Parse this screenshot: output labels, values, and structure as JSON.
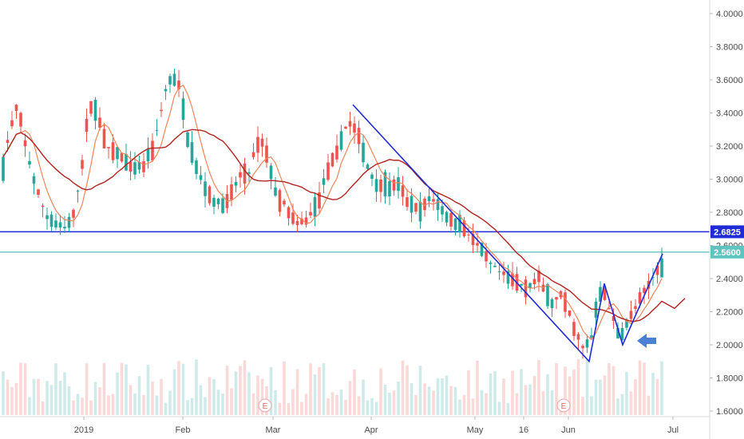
{
  "chart_data": {
    "type": "candlestick",
    "y_ticks": [
      "4.0000",
      "3.8000",
      "3.6000",
      "3.4000",
      "3.2000",
      "3.0000",
      "2.8000",
      "2.6000",
      "2.4000",
      "2.2000",
      "2.0000",
      "1.8000",
      "1.6000"
    ],
    "x_ticks": [
      "2019",
      "Feb",
      "Mar",
      "Apr",
      "May",
      "16",
      "Jun",
      "Jul"
    ],
    "ylim": [
      1.55,
      4.05
    ],
    "price_tags": [
      {
        "value": 2.6825,
        "label": "2.6825",
        "color": "#1e2bd6"
      },
      {
        "value": 2.56,
        "label": "2.5600",
        "color": "#5fc4c0"
      }
    ],
    "horizontal_lines": [
      {
        "value": 2.6825,
        "color": "#1e2bd6"
      },
      {
        "value": 2.56,
        "color": "#5fc4c0"
      }
    ],
    "earnings_markers": [
      {
        "label": "E"
      },
      {
        "label": "E"
      }
    ],
    "colors": {
      "up": "#26a69a",
      "down": "#ef5350",
      "ma_fast": "#f0855a",
      "ma_slow": "#b2221e",
      "trend": "#1e2bd6",
      "arrow": "#4c7fd6"
    }
  }
}
